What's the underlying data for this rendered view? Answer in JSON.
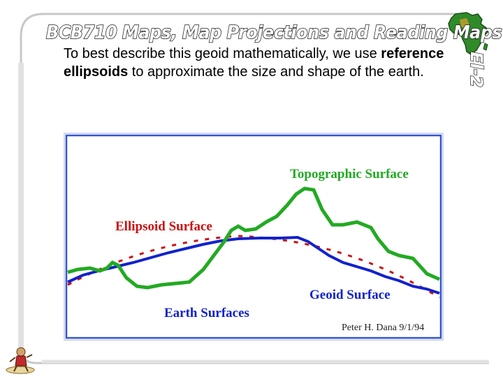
{
  "header": {
    "title": "BCB710 Maps, Map Projections and Reading Maps",
    "slide_code": "El-2"
  },
  "body": {
    "part1": "To best describe this geoid mathematically, we use ",
    "bold": "reference ellipsoids",
    "part2": " to approximate the size and shape of the earth."
  },
  "figure": {
    "labels": {
      "topographic": "Topographic Surface",
      "ellipsoid": "Ellipsoid Surface",
      "geoid": "Geoid Surface",
      "earth": "Earth Surfaces",
      "credit": "Peter H. Dana 9/1/94"
    },
    "colors": {
      "topographic": "#22aa22",
      "ellipsoid": "#cc1111",
      "geoid": "#1122cc",
      "frame": "#3355cc"
    }
  },
  "icons": {
    "logo": "africa-map-icon",
    "mascot": "figure-mascot-icon"
  }
}
